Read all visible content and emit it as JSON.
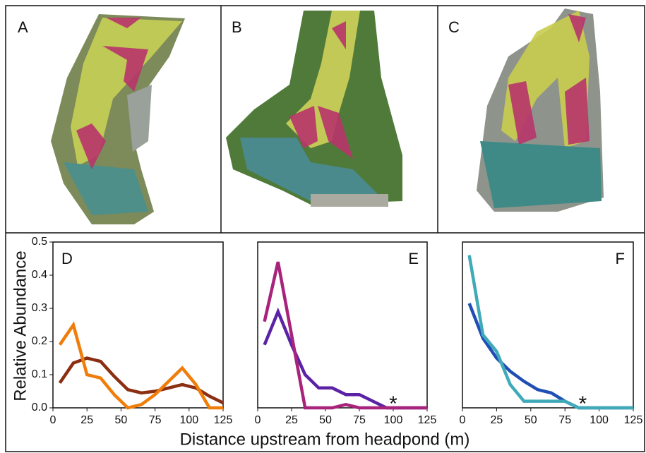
{
  "panels": [
    {
      "label": "A"
    },
    {
      "label": "B"
    },
    {
      "label": "C"
    }
  ],
  "xlabel": "Distance upstream from headpond (m)",
  "ylabel": "Relative Abundance",
  "chart_data": [
    {
      "type": "line",
      "panel_label": "D",
      "x": [
        5,
        15,
        25,
        35,
        45,
        55,
        65,
        75,
        85,
        95,
        105,
        115,
        125
      ],
      "series": [
        {
          "color": "#8b2e12",
          "values": [
            0.075,
            0.135,
            0.15,
            0.14,
            0.095,
            0.055,
            0.045,
            0.05,
            0.06,
            0.07,
            0.06,
            0.035,
            0.015
          ]
        },
        {
          "color": "#f07d0a",
          "values": [
            0.19,
            0.25,
            0.1,
            0.09,
            0.04,
            0.0,
            0.01,
            0.04,
            0.08,
            0.12,
            0.07,
            0.0,
            0.0
          ]
        }
      ],
      "xlim": [
        0,
        125
      ],
      "xticks": [
        0,
        25,
        50,
        75,
        100,
        125
      ],
      "ylim": [
        0,
        0.5
      ],
      "yticks": [
        {
          "value": 0,
          "label": "0.0"
        },
        {
          "value": 0.1,
          "label": "0.1"
        },
        {
          "value": 0.2,
          "label": "0.2"
        },
        {
          "value": 0.3,
          "label": "0.3"
        },
        {
          "value": 0.4,
          "label": "0.4"
        },
        {
          "value": 0.5,
          "label": "0.5"
        }
      ]
    },
    {
      "type": "line",
      "panel_label": "E",
      "annotation": "*",
      "x": [
        5,
        15,
        25,
        35,
        45,
        55,
        65,
        75,
        85,
        95,
        105,
        115,
        125
      ],
      "series": [
        {
          "color": "#5b22a6",
          "values": [
            0.19,
            0.29,
            0.19,
            0.1,
            0.06,
            0.06,
            0.04,
            0.04,
            0.02,
            0.0,
            0.0,
            0.0,
            0.0
          ]
        },
        {
          "color": "#a8247c",
          "values": [
            0.26,
            0.44,
            0.22,
            0.0,
            0.0,
            0.0,
            0.01,
            0.0,
            0.0,
            0.0,
            0.0,
            0.0,
            0.0
          ]
        }
      ],
      "xlim": [
        0,
        125
      ],
      "xticks": [
        0,
        25,
        50,
        75,
        100,
        125
      ],
      "ylim": [
        0,
        0.5
      ]
    },
    {
      "type": "line",
      "panel_label": "F",
      "annotation": "*",
      "x": [
        5,
        15,
        25,
        35,
        45,
        55,
        65,
        75,
        85,
        95,
        105,
        115,
        125
      ],
      "series": [
        {
          "color": "#1f4fb5",
          "values": [
            0.315,
            0.21,
            0.15,
            0.11,
            0.08,
            0.055,
            0.045,
            0.02,
            0.0,
            0.0,
            0.0,
            0.0,
            0.0
          ]
        },
        {
          "color": "#41aab8",
          "values": [
            0.46,
            0.22,
            0.17,
            0.07,
            0.02,
            0.02,
            0.02,
            0.02,
            0.0,
            0.0,
            0.0,
            0.0,
            0.0
          ]
        }
      ],
      "xlim": [
        0,
        125
      ],
      "xticks": [
        0,
        25,
        50,
        75,
        100,
        125
      ],
      "ylim": [
        0,
        0.5
      ]
    }
  ]
}
